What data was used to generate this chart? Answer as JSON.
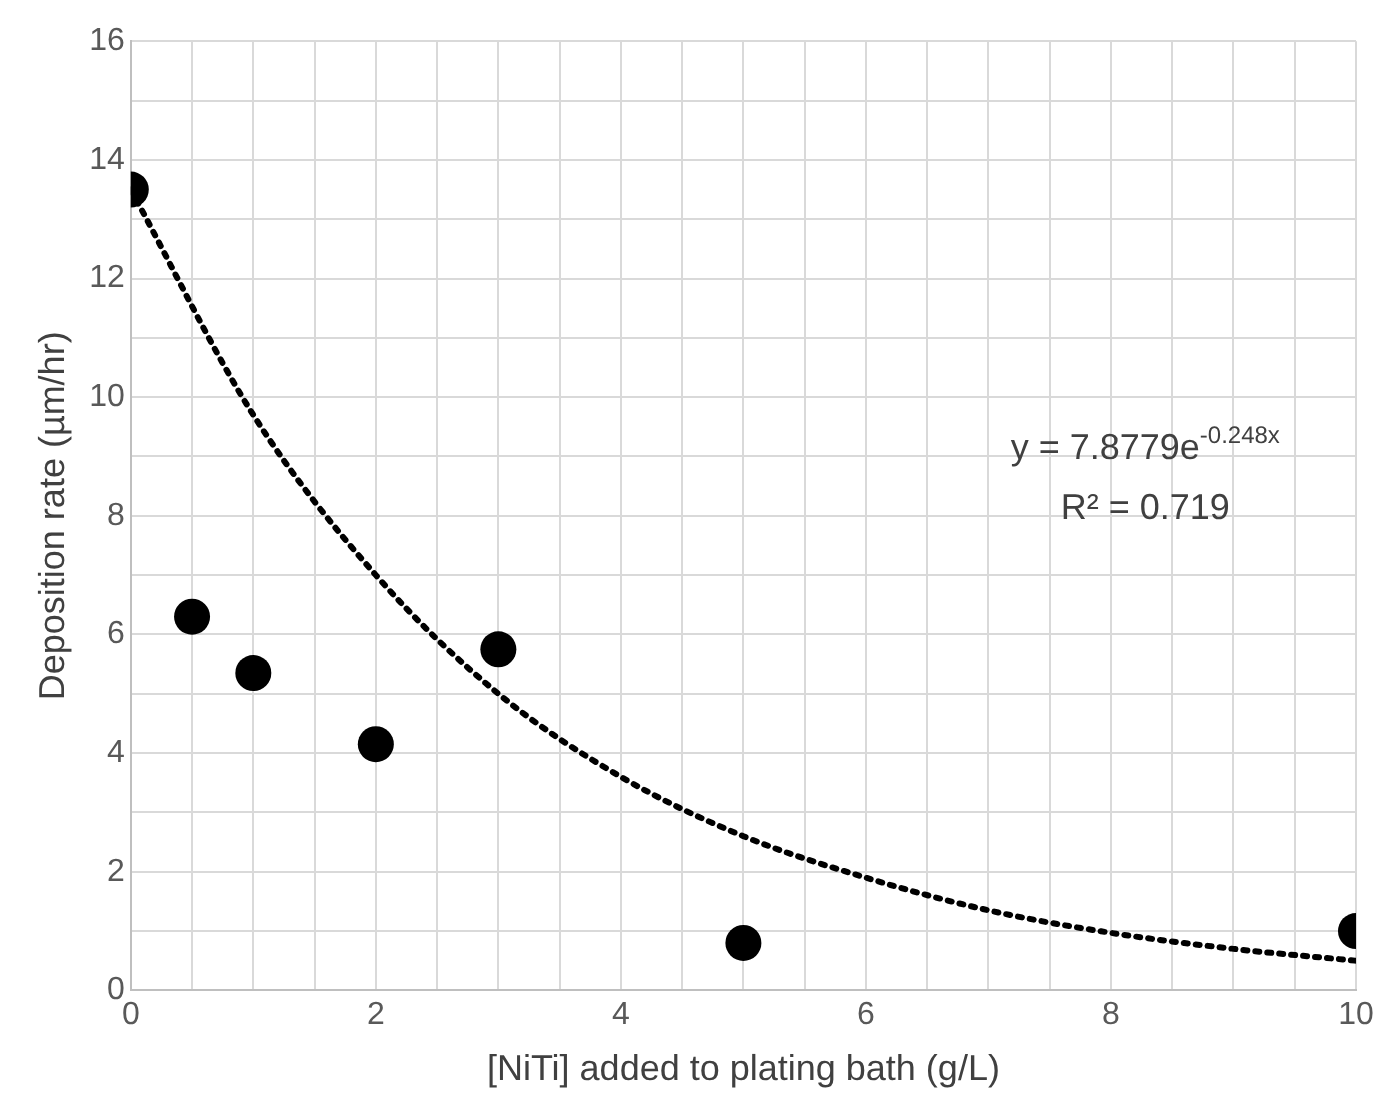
{
  "chart_data": {
    "type": "scatter",
    "xlabel": "[NiTi] added to plating bath (g/L)",
    "ylabel": "Deposition rate (µm/hr)",
    "series": [
      {
        "type": "scatter",
        "color": "#000000",
        "marker": "circle",
        "x": [
          0,
          0.5,
          1,
          2,
          3,
          5,
          10
        ],
        "values": [
          13.5,
          6.3,
          5.35,
          4.15,
          5.75,
          0.8,
          1.0
        ]
      },
      {
        "type": "line",
        "color": "#000000",
        "marker": "none",
        "line_style": "dotted",
        "x": [
          0,
          1,
          2,
          3,
          4,
          5,
          6,
          7,
          8,
          9,
          10
        ],
        "values": [
          13.5,
          9.7,
          7.0,
          5.0,
          3.6,
          2.6,
          1.9,
          1.35,
          0.97,
          0.7,
          0.5
        ]
      }
    ],
    "xlim": [
      0,
      10
    ],
    "ylim": [
      0,
      16
    ],
    "xticks": [
      0,
      {
        "value": 0.5,
        "label": null
      },
      {
        "value": 1,
        "label": null
      },
      {
        "value": 1.5,
        "label": null
      },
      2,
      {
        "value": 2.5,
        "label": null
      },
      {
        "value": 3,
        "label": null
      },
      {
        "value": 3.5,
        "label": null
      },
      4,
      {
        "value": 4.5,
        "label": null
      },
      {
        "value": 5,
        "label": null
      },
      {
        "value": 5.5,
        "label": null
      },
      6,
      {
        "value": 6.5,
        "label": null
      },
      {
        "value": 7,
        "label": null
      },
      {
        "value": 7.5,
        "label": null
      },
      8,
      {
        "value": 8.5,
        "label": null
      },
      {
        "value": 9,
        "label": null
      },
      {
        "value": 9.5,
        "label": null
      },
      10
    ],
    "yticks": [
      0,
      {
        "value": 1,
        "label": null
      },
      2,
      {
        "value": 3,
        "label": null
      },
      4,
      {
        "value": 5,
        "label": null
      },
      6,
      {
        "value": 7,
        "label": null
      },
      8,
      {
        "value": 9,
        "label": null
      },
      10,
      {
        "value": 11,
        "label": null
      },
      12,
      {
        "value": 13,
        "label": null
      },
      14,
      {
        "value": 15,
        "label": null
      },
      16
    ],
    "grid": true,
    "legend": false,
    "annotations": [
      "y = 7.8779e$^{-0.248x}$",
      "R² = 0.719"
    ]
  }
}
